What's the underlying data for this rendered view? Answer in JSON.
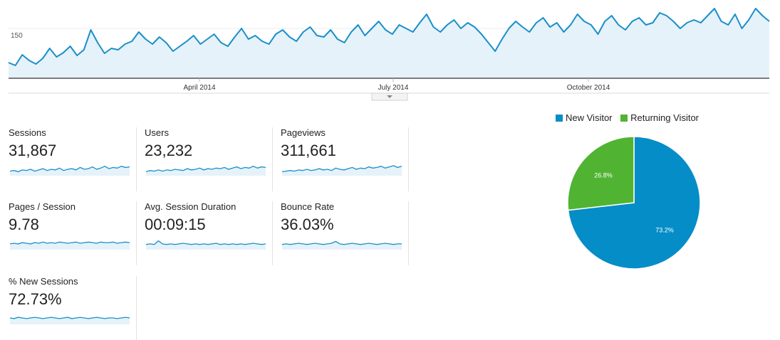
{
  "colors": {
    "line": "#1a8fc9",
    "fill": "#e5f2f9",
    "new": "#058dc7",
    "returning": "#50b432"
  },
  "main_chart": {
    "y_label": "150",
    "x_labels": [
      "April 2014",
      "July 2014",
      "October 2014"
    ]
  },
  "chart_data": [
    {
      "type": "area",
      "title": "",
      "y_ticks": [
        150
      ],
      "x_tick_labels": [
        "April 2014",
        "July 2014",
        "October 2014"
      ],
      "series": [
        {
          "values": [
            92,
            88,
            103,
            95,
            90,
            98,
            112,
            100,
            106,
            115,
            102,
            110,
            138,
            120,
            105,
            112,
            110,
            118,
            122,
            135,
            125,
            118,
            128,
            120,
            108,
            115,
            122,
            130,
            118,
            125,
            132,
            120,
            115,
            128,
            140,
            125,
            130,
            122,
            118,
            132,
            138,
            128,
            122,
            135,
            142,
            130,
            128,
            138,
            125,
            120,
            135,
            145,
            130,
            140,
            150,
            138,
            132,
            145,
            140,
            135,
            148,
            160,
            142,
            135,
            145,
            152,
            140,
            148,
            142,
            132,
            120,
            108,
            125,
            140,
            150,
            142,
            135,
            148,
            155,
            142,
            148,
            135,
            145,
            160,
            150,
            145,
            132,
            150,
            158,
            145,
            138,
            150,
            155,
            145,
            148,
            162,
            158,
            150,
            140,
            148,
            152,
            148,
            158,
            168,
            150,
            145,
            160,
            140,
            152,
            168,
            158,
            150
          ]
        }
      ]
    },
    {
      "type": "pie",
      "legend_position": "top",
      "slices": [
        {
          "name": "New Visitor",
          "value": 73.2,
          "label": "73.2%"
        },
        {
          "name": "Returning Visitor",
          "value": 26.8,
          "label": "26.8%"
        }
      ]
    }
  ],
  "metrics": [
    {
      "label": "Sessions",
      "value": "31,867",
      "trend": [
        4,
        5,
        3,
        6,
        5,
        7,
        4,
        6,
        8,
        5,
        7,
        6,
        9,
        5,
        7,
        8,
        6,
        10,
        7,
        8,
        11,
        7,
        9,
        12,
        8,
        10,
        9,
        12,
        10,
        11
      ]
    },
    {
      "label": "Users",
      "value": "23,232",
      "trend": [
        3,
        5,
        4,
        6,
        4,
        6,
        5,
        7,
        6,
        5,
        8,
        6,
        7,
        9,
        6,
        8,
        7,
        9,
        8,
        10,
        7,
        9,
        11,
        8,
        10,
        9,
        12,
        9,
        11,
        10
      ]
    },
    {
      "label": "Pageviews",
      "value": "311,661",
      "trend": [
        3,
        4,
        5,
        4,
        6,
        5,
        7,
        5,
        6,
        8,
        6,
        7,
        5,
        9,
        7,
        6,
        8,
        10,
        7,
        9,
        8,
        11,
        9,
        10,
        12,
        9,
        11,
        13,
        10,
        12
      ]
    },
    {
      "label": "Pages / Session",
      "value": "9.78",
      "trend": [
        6,
        7,
        6,
        8,
        7,
        6,
        8,
        7,
        9,
        7,
        8,
        7,
        9,
        8,
        7,
        8,
        9,
        7,
        8,
        9,
        8,
        7,
        9,
        8,
        8,
        9,
        7,
        8,
        9,
        8
      ]
    },
    {
      "label": "Avg. Session Duration",
      "value": "00:09:15",
      "trend": [
        5,
        6,
        5,
        11,
        6,
        5,
        6,
        5,
        6,
        7,
        6,
        5,
        6,
        5,
        6,
        5,
        6,
        7,
        5,
        6,
        5,
        6,
        5,
        6,
        5,
        6,
        7,
        6,
        5,
        6
      ]
    },
    {
      "label": "Bounce Rate",
      "value": "36.03%",
      "trend": [
        5,
        6,
        5,
        6,
        7,
        6,
        5,
        6,
        7,
        6,
        5,
        6,
        7,
        10,
        6,
        5,
        6,
        7,
        6,
        5,
        6,
        7,
        6,
        5,
        6,
        7,
        6,
        5,
        6,
        6
      ]
    },
    {
      "label": "% New Sessions",
      "value": "72.73%",
      "trend": [
        7,
        6,
        8,
        7,
        6,
        7,
        8,
        7,
        6,
        7,
        8,
        7,
        6,
        7,
        8,
        6,
        7,
        8,
        7,
        6,
        7,
        8,
        7,
        6,
        7,
        7,
        6,
        7,
        8,
        7
      ]
    }
  ]
}
